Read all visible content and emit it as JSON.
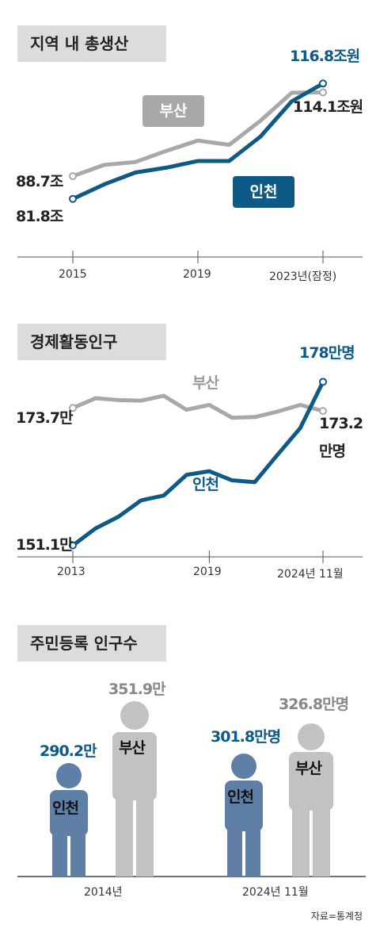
{
  "colors": {
    "incheon": "#0d5a86",
    "busan": "#a8a8a8",
    "title_bg": "#dcdcdc",
    "incheon_person": "#5f7fa6",
    "busan_person": "#c2c2c2"
  },
  "source": "자료=통계청",
  "chart_data": [
    {
      "type": "line",
      "title": "지역 내 총생산",
      "x_labels": [
        "2015",
        "2019",
        "2023년(잠정)"
      ],
      "series": [
        {
          "name": "부산",
          "x": [
            2015,
            2016,
            2017,
            2018,
            2019,
            2020,
            2021,
            2022,
            2023
          ],
          "values": [
            88.7,
            92.1,
            93.0,
            96.4,
            99.5,
            98.2,
            105.5,
            114.0,
            114.1
          ]
        },
        {
          "name": "인천",
          "x": [
            2015,
            2016,
            2017,
            2018,
            2019,
            2020,
            2021,
            2022,
            2023
          ],
          "values": [
            81.8,
            86.2,
            89.8,
            91.3,
            93.3,
            93.3,
            100.7,
            111.4,
            116.8
          ]
        }
      ],
      "start_labels": {
        "busan": "88.7조",
        "incheon": "81.8조"
      },
      "end_labels": {
        "incheon": "116.8조원",
        "busan": "114.1조원"
      },
      "ylim": [
        75,
        120
      ]
    },
    {
      "type": "line",
      "title": "경제활동인구",
      "x_labels": [
        "2013",
        "2019",
        "2024년 11월"
      ],
      "series": [
        {
          "name": "부산",
          "x": [
            2013,
            2014,
            2015,
            2016,
            2017,
            2018,
            2019,
            2020,
            2021,
            2022,
            2023,
            2024
          ],
          "values": [
            173.7,
            175.3,
            175.0,
            174.9,
            175.7,
            173.4,
            174.2,
            172.1,
            172.2,
            173.1,
            174.2,
            173.2
          ]
        },
        {
          "name": "인천",
          "x": [
            2013,
            2014,
            2015,
            2016,
            2017,
            2018,
            2019,
            2020,
            2021,
            2022,
            2023,
            2024
          ],
          "values": [
            151.1,
            153.9,
            155.8,
            158.5,
            159.3,
            162.7,
            163.3,
            161.8,
            161.5,
            166.0,
            170.4,
            178.0
          ]
        }
      ],
      "start_labels": {
        "busan": "173.7만",
        "incheon": "151.1만"
      },
      "end_labels": {
        "incheon": "178만명",
        "busan_line1": "173.2",
        "busan_line2": "만명"
      },
      "ylim": [
        150,
        180
      ]
    },
    {
      "type": "bar",
      "title": "주민등록 인구수",
      "categories": [
        "2014년",
        "2024년 11월"
      ],
      "series": [
        {
          "name": "인천",
          "values": [
            290.2,
            301.8
          ]
        },
        {
          "name": "부산",
          "values": [
            351.9,
            326.8
          ]
        }
      ],
      "value_labels": {
        "incheon_2014": "290.2만",
        "busan_2014": "351.9만",
        "incheon_2024": "301.8만명",
        "busan_2024": "326.8만명"
      }
    }
  ]
}
